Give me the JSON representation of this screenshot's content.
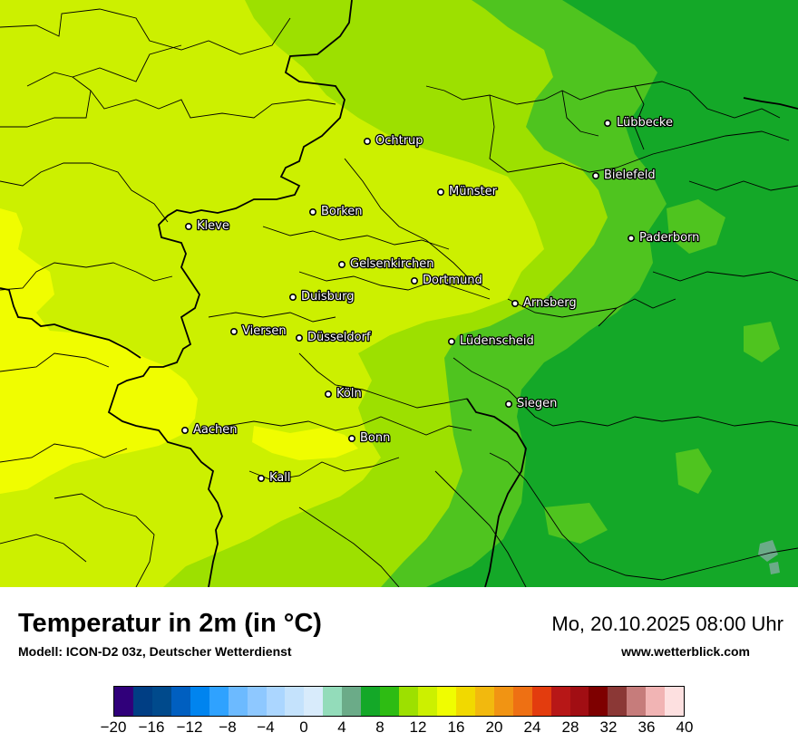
{
  "map": {
    "cities": [
      {
        "name": "Lübbecke"
      },
      {
        "name": "Ochtrup"
      },
      {
        "name": "Bielefeld"
      },
      {
        "name": "Münster"
      },
      {
        "name": "Borken"
      },
      {
        "name": "Kleve"
      },
      {
        "name": "Paderborn"
      },
      {
        "name": "Gelsenkirchen"
      },
      {
        "name": "Dortmund"
      },
      {
        "name": "Duisburg"
      },
      {
        "name": "Arnsberg"
      },
      {
        "name": "Viersen"
      },
      {
        "name": "Düsseldorf"
      },
      {
        "name": "Lüdenscheid"
      },
      {
        "name": "Köln"
      },
      {
        "name": "Siegen"
      },
      {
        "name": "Aachen"
      },
      {
        "name": "Bonn"
      },
      {
        "name": "Kall"
      }
    ],
    "field_colors": {
      "t16": "#f0fd00",
      "t14": "#ccf000",
      "t12": "#9de000",
      "t10": "#4fc41f",
      "t8": "#14a828",
      "t6": "#6bab88"
    }
  },
  "footer": {
    "title": "Temperatur in 2m (in °C)",
    "model": "Modell: ICON-D2 03z, Deutscher Wetterdienst",
    "datetime": "Mo, 20.10.2025 08:00 Uhr",
    "site": "www.wetterblick.com"
  },
  "legend": {
    "colors": [
      "#30007a",
      "#003e84",
      "#004a8c",
      "#005fc0",
      "#0084ef",
      "#2fa2ff",
      "#6cbaff",
      "#8ec8ff",
      "#abd6ff",
      "#c4e2fc",
      "#d8ebfb",
      "#93dcba",
      "#6bab88",
      "#14a828",
      "#2ebc13",
      "#9de000",
      "#ccf000",
      "#f0fd00",
      "#f1d900",
      "#f2b90e",
      "#f19413",
      "#ee7013",
      "#e33c0e",
      "#b71717",
      "#a10e13",
      "#7e0000",
      "#8b3836",
      "#c67c7b",
      "#f1b4b4",
      "#fde0e0"
    ],
    "ticks": [
      "−20",
      "−16",
      "−12",
      "−8",
      "−4",
      "0",
      "4",
      "8",
      "12",
      "16",
      "20",
      "24",
      "28",
      "32",
      "36",
      "40"
    ]
  }
}
